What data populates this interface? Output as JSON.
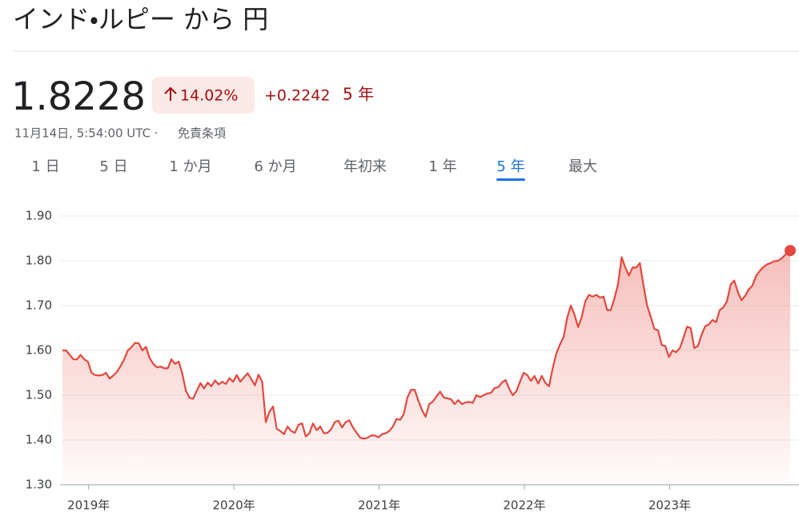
{
  "header": {
    "title": "インド・ルピー から 円"
  },
  "quote": {
    "price": 1.8228,
    "change_percent": "14.02%",
    "change": "+0.2242",
    "period": "5 年",
    "timestamp": "11月14日, 5:54:00 UTC ·",
    "disclaimer": "免責条項"
  },
  "tabs": [
    "1 日",
    "5 日",
    "1 か月",
    "6 か月",
    "年初来",
    "1 年",
    "5 年",
    "最大"
  ],
  "selected_tab": 6,
  "chart_data": {
    "type": "line",
    "x": [
      2018.82,
      2018.845,
      2018.87,
      2018.895,
      2018.92,
      2018.945,
      2018.97,
      2018.995,
      2019.02,
      2019.045,
      2019.07,
      2019.095,
      2019.12,
      2019.145,
      2019.17,
      2019.195,
      2019.22,
      2019.245,
      2019.27,
      2019.295,
      2019.32,
      2019.345,
      2019.37,
      2019.395,
      2019.42,
      2019.445,
      2019.47,
      2019.495,
      2019.52,
      2019.545,
      2019.57,
      2019.595,
      2019.62,
      2019.645,
      2019.67,
      2019.695,
      2019.72,
      2019.745,
      2019.77,
      2019.795,
      2019.82,
      2019.845,
      2019.87,
      2019.895,
      2019.92,
      2019.945,
      2019.97,
      2019.995,
      2020.02,
      2020.045,
      2020.07,
      2020.095,
      2020.12,
      2020.145,
      2020.17,
      2020.195,
      2020.22,
      2020.245,
      2020.27,
      2020.295,
      2020.32,
      2020.345,
      2020.37,
      2020.395,
      2020.42,
      2020.445,
      2020.47,
      2020.495,
      2020.52,
      2020.545,
      2020.57,
      2020.595,
      2020.62,
      2020.645,
      2020.67,
      2020.695,
      2020.72,
      2020.745,
      2020.77,
      2020.795,
      2020.82,
      2020.845,
      2020.87,
      2020.895,
      2020.92,
      2020.945,
      2020.97,
      2020.995,
      2021.02,
      2021.045,
      2021.07,
      2021.095,
      2021.12,
      2021.145,
      2021.17,
      2021.195,
      2021.22,
      2021.245,
      2021.27,
      2021.295,
      2021.32,
      2021.345,
      2021.37,
      2021.395,
      2021.42,
      2021.445,
      2021.47,
      2021.495,
      2021.52,
      2021.545,
      2021.57,
      2021.595,
      2021.62,
      2021.645,
      2021.67,
      2021.695,
      2021.72,
      2021.745,
      2021.77,
      2021.795,
      2021.82,
      2021.845,
      2021.87,
      2021.895,
      2021.92,
      2021.945,
      2021.97,
      2021.995,
      2022.02,
      2022.045,
      2022.07,
      2022.095,
      2022.12,
      2022.145,
      2022.17,
      2022.195,
      2022.22,
      2022.245,
      2022.27,
      2022.295,
      2022.32,
      2022.345,
      2022.37,
      2022.395,
      2022.42,
      2022.445,
      2022.47,
      2022.495,
      2022.52,
      2022.545,
      2022.57,
      2022.595,
      2022.62,
      2022.645,
      2022.67,
      2022.695,
      2022.72,
      2022.745,
      2022.77,
      2022.795,
      2022.82,
      2022.845,
      2022.87,
      2022.895,
      2022.92,
      2022.945,
      2022.97,
      2022.995,
      2023.02,
      2023.045,
      2023.07,
      2023.095,
      2023.12,
      2023.145,
      2023.17,
      2023.195,
      2023.22,
      2023.245,
      2023.27,
      2023.295,
      2023.32,
      2023.345,
      2023.37,
      2023.395,
      2023.42,
      2023.445,
      2023.47,
      2023.495,
      2023.52,
      2023.545,
      2023.57,
      2023.595,
      2023.62,
      2023.645,
      2023.67,
      2023.695,
      2023.72,
      2023.745,
      2023.77,
      2023.795,
      2023.82,
      2023.83
    ],
    "series": [
      {
        "color": "#e5473d",
        "values": [
          1.6,
          1.6,
          1.59,
          1.58,
          1.58,
          1.59,
          1.58,
          1.575,
          1.55,
          1.545,
          1.544,
          1.545,
          1.55,
          1.537,
          1.544,
          1.552,
          1.565,
          1.58,
          1.6,
          1.607,
          1.617,
          1.616,
          1.6,
          1.608,
          1.583,
          1.57,
          1.562,
          1.564,
          1.56,
          1.56,
          1.58,
          1.57,
          1.575,
          1.548,
          1.51,
          1.494,
          1.492,
          1.51,
          1.527,
          1.515,
          1.528,
          1.52,
          1.533,
          1.524,
          1.53,
          1.525,
          1.538,
          1.53,
          1.545,
          1.53,
          1.54,
          1.549,
          1.536,
          1.522,
          1.546,
          1.53,
          1.44,
          1.463,
          1.475,
          1.425,
          1.42,
          1.413,
          1.43,
          1.42,
          1.416,
          1.434,
          1.437,
          1.408,
          1.415,
          1.437,
          1.422,
          1.43,
          1.415,
          1.416,
          1.424,
          1.44,
          1.443,
          1.428,
          1.44,
          1.444,
          1.428,
          1.416,
          1.405,
          1.403,
          1.405,
          1.41,
          1.41,
          1.406,
          1.413,
          1.415,
          1.42,
          1.43,
          1.447,
          1.445,
          1.458,
          1.495,
          1.512,
          1.512,
          1.488,
          1.467,
          1.452,
          1.48,
          1.486,
          1.497,
          1.508,
          1.495,
          1.493,
          1.491,
          1.48,
          1.489,
          1.48,
          1.484,
          1.485,
          1.483,
          1.5,
          1.496,
          1.5,
          1.504,
          1.505,
          1.516,
          1.518,
          1.528,
          1.534,
          1.515,
          1.5,
          1.509,
          1.53,
          1.55,
          1.545,
          1.532,
          1.543,
          1.526,
          1.543,
          1.527,
          1.52,
          1.56,
          1.593,
          1.613,
          1.63,
          1.673,
          1.7,
          1.68,
          1.652,
          1.675,
          1.71,
          1.724,
          1.72,
          1.724,
          1.718,
          1.72,
          1.69,
          1.69,
          1.716,
          1.748,
          1.808,
          1.785,
          1.767,
          1.785,
          1.785,
          1.795,
          1.745,
          1.7,
          1.675,
          1.648,
          1.645,
          1.612,
          1.61,
          1.585,
          1.6,
          1.596,
          1.605,
          1.628,
          1.653,
          1.65,
          1.605,
          1.61,
          1.635,
          1.654,
          1.658,
          1.668,
          1.663,
          1.69,
          1.696,
          1.71,
          1.747,
          1.756,
          1.73,
          1.712,
          1.722,
          1.736,
          1.745,
          1.766,
          1.777,
          1.786,
          1.792,
          1.795,
          1.799,
          1.8,
          1.805,
          1.813,
          1.821,
          1.8228
        ]
      }
    ],
    "xlim": [
      2018.82,
      2023.83
    ],
    "xticks": [
      {
        "value": 2019,
        "label": "2019年"
      },
      {
        "value": 2020,
        "label": "2020年"
      },
      {
        "value": 2021,
        "label": "2021年"
      },
      {
        "value": 2022,
        "label": "2022年"
      },
      {
        "value": 2023,
        "label": "2023年"
      }
    ],
    "ylim": [
      1.3,
      1.9
    ],
    "yticks": [
      {
        "value": 1.9,
        "label": "1.90"
      },
      {
        "value": 1.8,
        "label": "1.80"
      },
      {
        "value": 1.7,
        "label": "1.70"
      },
      {
        "value": 1.6,
        "label": "1.60"
      },
      {
        "value": 1.5,
        "label": "1.50"
      },
      {
        "value": 1.4,
        "label": "1.40"
      },
      {
        "value": 1.3,
        "label": "1.30"
      }
    ],
    "grid": true
  }
}
